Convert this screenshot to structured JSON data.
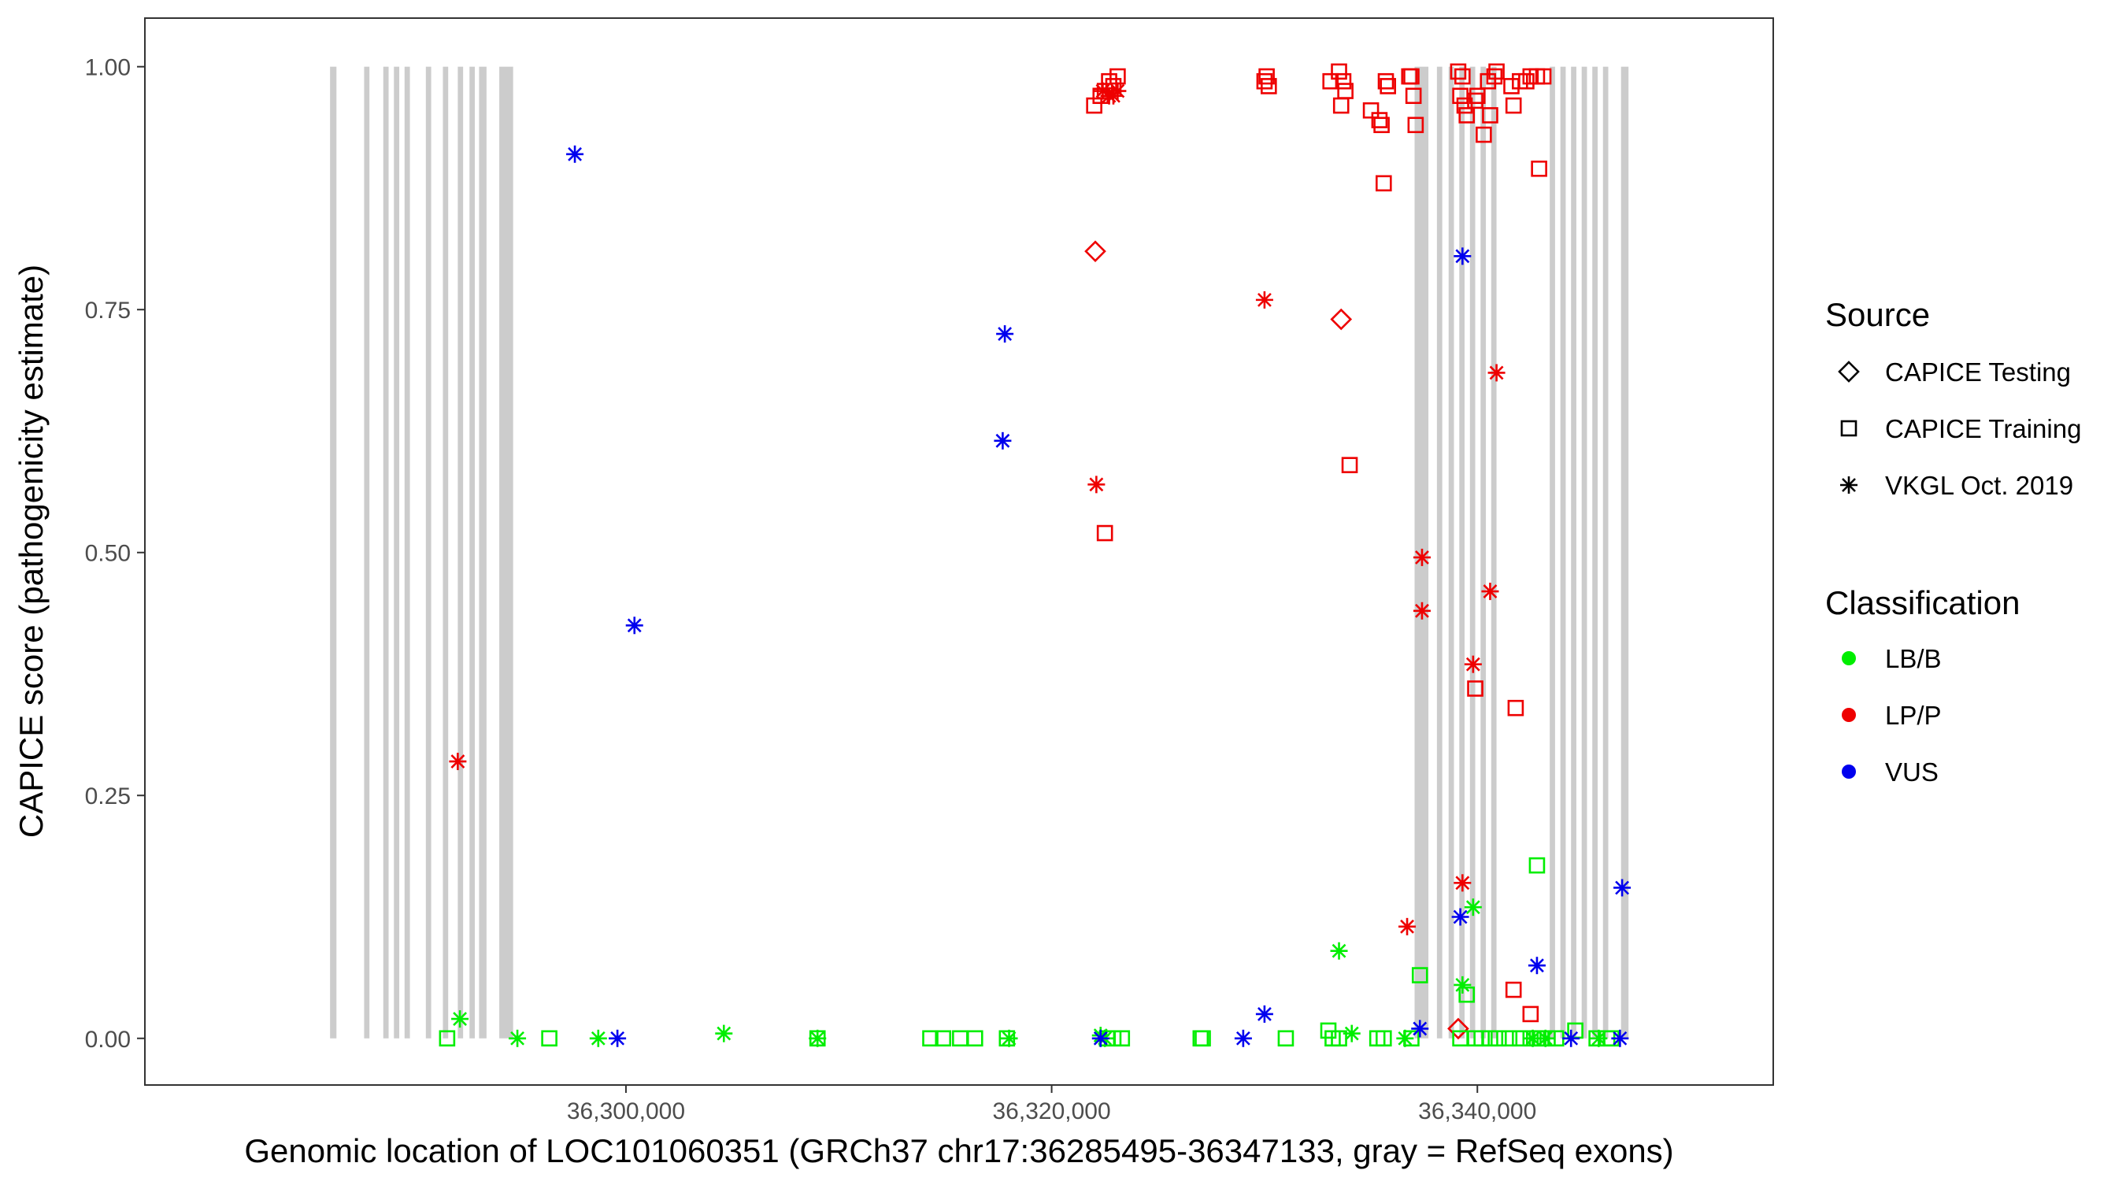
{
  "chart_data": {
    "type": "scatter",
    "xlabel": "Genomic location of LOC101060351 (GRCh37 chr17:36285495-36347133, gray = RefSeq exons)",
    "ylabel": "CAPICE score (pathogenicity estimate)",
    "xlim": [
      36277400,
      36353900
    ],
    "ylim": [
      -0.048,
      1.05
    ],
    "x_ticks": [
      {
        "value": 36300000,
        "label": "36,300,000"
      },
      {
        "value": 36320000,
        "label": "36,320,000"
      },
      {
        "value": 36340000,
        "label": "36,340,000"
      }
    ],
    "y_ticks": [
      {
        "value": 0.0,
        "label": "0.00"
      },
      {
        "value": 0.25,
        "label": "0.25"
      },
      {
        "value": 0.5,
        "label": "0.50"
      },
      {
        "value": 0.75,
        "label": "0.75"
      },
      {
        "value": 1.0,
        "label": "1.00"
      }
    ],
    "grid": false,
    "legend_position": "right",
    "exons": [
      [
        36286100,
        36286400
      ],
      [
        36287700,
        36287950
      ],
      [
        36288600,
        36288850
      ],
      [
        36289100,
        36289350
      ],
      [
        36289600,
        36289850
      ],
      [
        36290600,
        36290850
      ],
      [
        36291400,
        36291650
      ],
      [
        36292100,
        36292350
      ],
      [
        36292650,
        36292900
      ],
      [
        36293100,
        36293450
      ],
      [
        36294050,
        36294700
      ],
      [
        36337050,
        36337700
      ],
      [
        36338100,
        36338350
      ],
      [
        36338650,
        36338900
      ],
      [
        36339150,
        36339400
      ],
      [
        36339650,
        36339900
      ],
      [
        36340150,
        36340400
      ],
      [
        36340650,
        36340900
      ],
      [
        36343400,
        36343650
      ],
      [
        36343900,
        36344150
      ],
      [
        36344400,
        36344650
      ],
      [
        36344900,
        36345150
      ],
      [
        36345400,
        36345650
      ],
      [
        36345900,
        36346150
      ],
      [
        36346750,
        36347100
      ]
    ],
    "legend": {
      "source_title": "Source",
      "source_entries": [
        {
          "label": "CAPICE Testing",
          "shape": "diamond"
        },
        {
          "label": "CAPICE Training",
          "shape": "square"
        },
        {
          "label": "VKGL Oct. 2019",
          "shape": "asterisk"
        }
      ],
      "classification_title": "Classification",
      "classification_entries": [
        {
          "label": "LB/B",
          "color": "#00ee00"
        },
        {
          "label": "LP/P",
          "color": "#ee0000"
        },
        {
          "label": "VUS",
          "color": "#0000ee"
        }
      ]
    },
    "series": [
      {
        "source": "CAPICE Testing",
        "classification": "LP/P",
        "points": [
          [
            36322050,
            0.81
          ],
          [
            36333600,
            0.74
          ],
          [
            36339100,
            0.01
          ]
        ]
      },
      {
        "source": "CAPICE Training",
        "classification": "LP/P",
        "points": [
          [
            36322000,
            0.96
          ],
          [
            36322300,
            0.97
          ],
          [
            36322500,
            0.975
          ],
          [
            36322700,
            0.985
          ],
          [
            36322900,
            0.98
          ],
          [
            36323100,
            0.99
          ],
          [
            36322500,
            0.52
          ],
          [
            36330000,
            0.985
          ],
          [
            36330100,
            0.99
          ],
          [
            36330200,
            0.98
          ],
          [
            36333100,
            0.985
          ],
          [
            36333500,
            0.995
          ],
          [
            36333700,
            0.985
          ],
          [
            36333800,
            0.975
          ],
          [
            36333600,
            0.96
          ],
          [
            36335000,
            0.955
          ],
          [
            36335400,
            0.945
          ],
          [
            36335500,
            0.94
          ],
          [
            36335700,
            0.985
          ],
          [
            36335800,
            0.98
          ],
          [
            36336800,
            0.99
          ],
          [
            36336900,
            0.99
          ],
          [
            36337000,
            0.97
          ],
          [
            36337100,
            0.94
          ],
          [
            36335600,
            0.88
          ],
          [
            36334000,
            0.59
          ],
          [
            36339100,
            0.995
          ],
          [
            36339300,
            0.99
          ],
          [
            36339200,
            0.97
          ],
          [
            36339400,
            0.96
          ],
          [
            36339500,
            0.95
          ],
          [
            36339900,
            0.965
          ],
          [
            36340000,
            0.97
          ],
          [
            36340300,
            0.93
          ],
          [
            36340500,
            0.985
          ],
          [
            36340600,
            0.95
          ],
          [
            36340800,
            0.99
          ],
          [
            36340900,
            0.995
          ],
          [
            36341600,
            0.98
          ],
          [
            36341700,
            0.96
          ],
          [
            36342000,
            0.985
          ],
          [
            36342300,
            0.985
          ],
          [
            36342500,
            0.99
          ],
          [
            36342800,
            0.99
          ],
          [
            36343100,
            0.99
          ],
          [
            36342900,
            0.895
          ],
          [
            36339900,
            0.36
          ],
          [
            36341800,
            0.34
          ],
          [
            36341700,
            0.05
          ],
          [
            36342500,
            0.025
          ]
        ]
      },
      {
        "source": "CAPICE Training",
        "classification": "LB/B",
        "points": [
          [
            36291600,
            0.0
          ],
          [
            36296400,
            0.0
          ],
          [
            36309000,
            0.0
          ],
          [
            36314300,
            0.0
          ],
          [
            36314900,
            0.0
          ],
          [
            36315700,
            0.0
          ],
          [
            36316400,
            0.0
          ],
          [
            36317900,
            0.0
          ],
          [
            36322600,
            0.0
          ],
          [
            36322900,
            0.0
          ],
          [
            36323300,
            0.0
          ],
          [
            36327000,
            0.0
          ],
          [
            36327100,
            0.0
          ],
          [
            36331000,
            0.0
          ],
          [
            36333200,
            0.0
          ],
          [
            36333500,
            0.0
          ],
          [
            36335300,
            0.0
          ],
          [
            36335600,
            0.0
          ],
          [
            36336900,
            0.0
          ],
          [
            36337300,
            0.065
          ],
          [
            36339200,
            0.0
          ],
          [
            36339500,
            0.045
          ],
          [
            36339900,
            0.0
          ],
          [
            36340200,
            0.0
          ],
          [
            36340600,
            0.0
          ],
          [
            36341000,
            0.0
          ],
          [
            36341500,
            0.0
          ],
          [
            36342000,
            0.0
          ],
          [
            36342500,
            0.0
          ],
          [
            36342800,
            0.0
          ],
          [
            36343000,
            0.0
          ],
          [
            36343300,
            0.0
          ],
          [
            36343700,
            0.0
          ],
          [
            36344600,
            0.008
          ],
          [
            36345600,
            0.0
          ],
          [
            36346100,
            0.0
          ],
          [
            36346300,
            0.0
          ],
          [
            36342800,
            0.178
          ],
          [
            36333000,
            0.008
          ]
        ]
      },
      {
        "source": "VKGL Oct. 2019",
        "classification": "LP/P",
        "points": [
          [
            36292100,
            0.285
          ],
          [
            36322100,
            0.57
          ],
          [
            36322400,
            0.975
          ],
          [
            36322700,
            0.97
          ],
          [
            36322900,
            0.97
          ],
          [
            36323100,
            0.975
          ],
          [
            36330000,
            0.76
          ],
          [
            36336700,
            0.115
          ],
          [
            36337400,
            0.495
          ],
          [
            36337400,
            0.44
          ],
          [
            36339300,
            0.16
          ],
          [
            36339800,
            0.385
          ],
          [
            36340600,
            0.46
          ],
          [
            36340900,
            0.685
          ]
        ]
      },
      {
        "source": "VKGL Oct. 2019",
        "classification": "LB/B",
        "points": [
          [
            36292200,
            0.02
          ],
          [
            36294900,
            0.0
          ],
          [
            36298700,
            0.0
          ],
          [
            36304600,
            0.005
          ],
          [
            36309000,
            0.0
          ],
          [
            36318000,
            0.0
          ],
          [
            36322300,
            0.003
          ],
          [
            36322500,
            0.0
          ],
          [
            36333500,
            0.09
          ],
          [
            36334100,
            0.005
          ],
          [
            36336600,
            0.0
          ],
          [
            36339300,
            0.055
          ],
          [
            36339800,
            0.135
          ],
          [
            36342600,
            0.0
          ],
          [
            36343200,
            0.0
          ],
          [
            36345700,
            0.0
          ]
        ]
      },
      {
        "source": "VKGL Oct. 2019",
        "classification": "VUS",
        "points": [
          [
            36297600,
            0.91
          ],
          [
            36299600,
            0.0
          ],
          [
            36300400,
            0.425
          ],
          [
            36317700,
            0.615
          ],
          [
            36317800,
            0.725
          ],
          [
            36322300,
            0.0
          ],
          [
            36329000,
            0.0
          ],
          [
            36330000,
            0.025
          ],
          [
            36337300,
            0.01
          ],
          [
            36339300,
            0.805
          ],
          [
            36339200,
            0.125
          ],
          [
            36342800,
            0.075
          ],
          [
            36344400,
            0.0
          ],
          [
            36346700,
            0.0
          ],
          [
            36346800,
            0.155
          ]
        ]
      }
    ]
  }
}
